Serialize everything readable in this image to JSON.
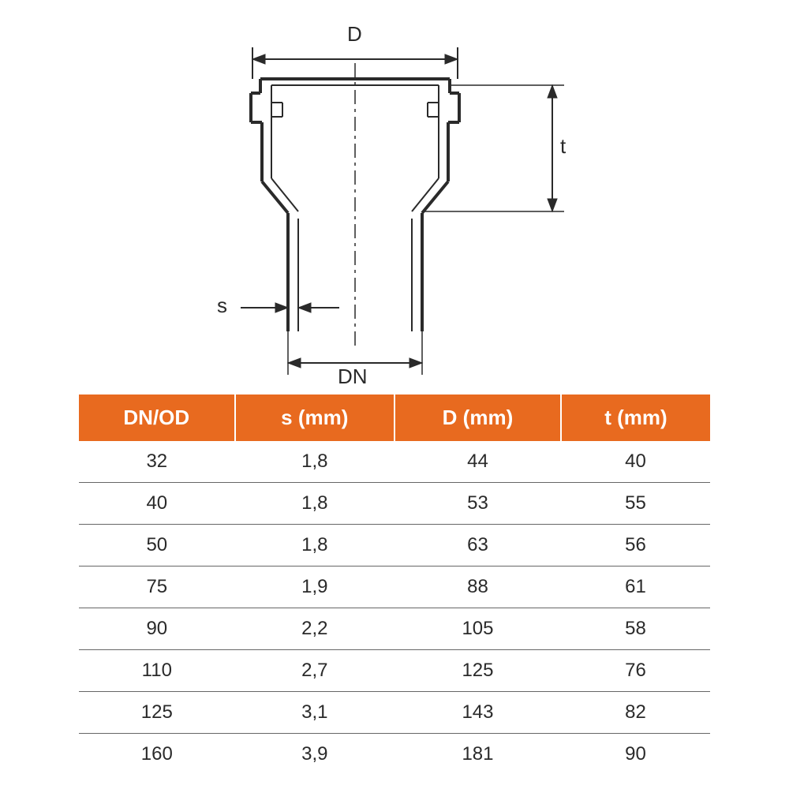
{
  "diagram": {
    "labels": {
      "D": "D",
      "t": "t",
      "s": "s",
      "DN": "DN"
    },
    "stroke_color": "#2a2a2a",
    "stroke_width_heavy": 4,
    "stroke_width_light": 2
  },
  "table": {
    "header_bg": "#e86a1f",
    "header_fg": "#ffffff",
    "row_border": "#666666",
    "cell_fg": "#2a2a2a",
    "columns": [
      "DN/OD",
      "s (mm)",
      "D (mm)",
      "t (mm)"
    ],
    "rows": [
      [
        "32",
        "1,8",
        "44",
        "40"
      ],
      [
        "40",
        "1,8",
        "53",
        "55"
      ],
      [
        "50",
        "1,8",
        "63",
        "56"
      ],
      [
        "75",
        "1,9",
        "88",
        "61"
      ],
      [
        "90",
        "2,2",
        "105",
        "58"
      ],
      [
        "110",
        "2,7",
        "125",
        "76"
      ],
      [
        "125",
        "3,1",
        "143",
        "82"
      ],
      [
        "160",
        "3,9",
        "181",
        "90"
      ]
    ],
    "col_widths_pct": [
      25,
      25,
      25,
      25
    ]
  }
}
